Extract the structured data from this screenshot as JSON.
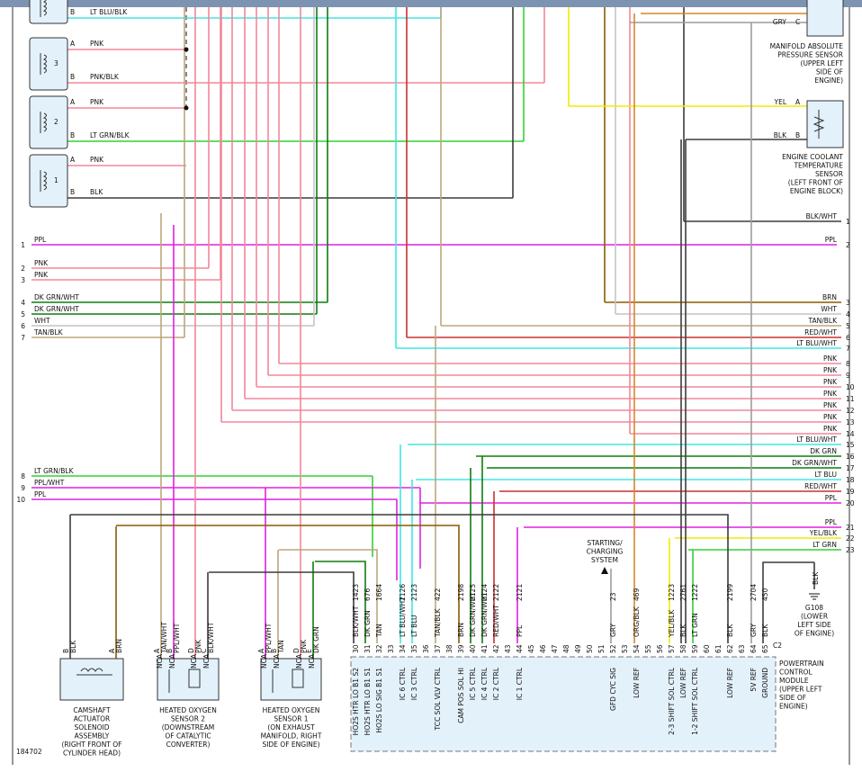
{
  "coils": [
    {
      "pins": [
        {
          "pin": "B",
          "wire": "LT BLU/BLK"
        }
      ]
    },
    {
      "label": "3",
      "pins": [
        {
          "pin": "A",
          "wire": "PNK"
        },
        {
          "pin": "B",
          "wire": "PNK/BLK"
        }
      ]
    },
    {
      "label": "2",
      "pins": [
        {
          "pin": "A",
          "wire": "PNK"
        },
        {
          "pin": "B",
          "wire": "LT GRN/BLK"
        }
      ]
    },
    {
      "label": "1",
      "pins": [
        {
          "pin": "A",
          "wire": "PNK"
        },
        {
          "pin": "B",
          "wire": "BLK"
        }
      ]
    }
  ],
  "left_rows": [
    {
      "num": 1,
      "wire": "PPL"
    },
    {
      "num": 2,
      "wire": "PNK"
    },
    {
      "num": 3,
      "wire": "PNK"
    },
    {
      "num": 4,
      "wire": "DK GRN/WHT"
    },
    {
      "num": 5,
      "wire": "DK GRN/WHT"
    },
    {
      "num": 6,
      "wire": "WHT"
    },
    {
      "num": 7,
      "wire": "TAN/BLK"
    },
    {
      "num": 8,
      "wire": "LT GRN/BLK"
    },
    {
      "num": 9,
      "wire": "PPL/WHT"
    },
    {
      "num": 10,
      "wire": "PPL"
    }
  ],
  "right_rows": [
    {
      "num": 1,
      "wire": "BLK/WHT"
    },
    {
      "num": 2,
      "wire": "PPL"
    },
    {
      "num": 3,
      "wire": "BRN"
    },
    {
      "num": 4,
      "wire": "WHT"
    },
    {
      "num": 5,
      "wire": "TAN/BLK"
    },
    {
      "num": 6,
      "wire": "RED/WHT"
    },
    {
      "num": 7,
      "wire": "LT BLU/WHT"
    },
    {
      "num": 8,
      "wire": "PNK"
    },
    {
      "num": 9,
      "wire": "PNK"
    },
    {
      "num": 10,
      "wire": "PNK"
    },
    {
      "num": 11,
      "wire": "PNK"
    },
    {
      "num": 12,
      "wire": "PNK"
    },
    {
      "num": 13,
      "wire": "PNK"
    },
    {
      "num": 14,
      "wire": "PNK"
    },
    {
      "num": 15,
      "wire": "LT BLU/WHT"
    },
    {
      "num": 16,
      "wire": "DK GRN"
    },
    {
      "num": 17,
      "wire": "DK GRN/WHT"
    },
    {
      "num": 18,
      "wire": "LT BLU"
    },
    {
      "num": 19,
      "wire": "RED/WHT"
    },
    {
      "num": 20,
      "wire": "PPL"
    },
    {
      "num": 21,
      "wire": "PPL"
    },
    {
      "num": 22,
      "wire": "YEL/BLK"
    },
    {
      "num": 23,
      "wire": "LT GRN"
    }
  ],
  "map_sensor": {
    "pins": [
      {
        "wire": "GRY",
        "pin": "C"
      }
    ],
    "label": [
      "MANIFOLD ABSOLUTE",
      "PRESSURE SENSOR",
      "(UPPER LEFT",
      "SIDE OF",
      "ENGINE)"
    ]
  },
  "ect_sensor": {
    "pins": [
      {
        "wire": "YEL",
        "pin": "A"
      },
      {
        "wire": "BLK",
        "pin": "B"
      }
    ],
    "label": [
      "ENGINE COOLANT",
      "TEMPERATURE",
      "SENSOR",
      "(LEFT FRONT OF",
      "ENGINE BLOCK)"
    ]
  },
  "camshaft": {
    "pins": [
      {
        "pin": "B",
        "wire": "BLK"
      },
      {
        "pin": "A",
        "wire": "BRN"
      }
    ],
    "label": [
      "CAMSHAFT",
      "ACTUATOR",
      "SOLENOID",
      "ASSEMBLY",
      "(RIGHT FRONT OF",
      "CYLINDER HEAD)"
    ]
  },
  "ho2s2": {
    "pins": [
      {
        "pin": "A",
        "wire": "TAN/WHT",
        "nca": "NCA"
      },
      {
        "pin": "B",
        "wire": "PPL/WHT",
        "nca": "NCA"
      },
      {
        "pin": "D",
        "wire": "PNK",
        "nca": "NCA"
      },
      {
        "pin": "C",
        "wire": "BLK/WHT",
        "nca": "NCA"
      }
    ],
    "label": [
      "HEATED OXYGEN",
      "SENSOR 2",
      "(DOWNSTREAM",
      "OF CATALYTIC",
      "CONVERTER)"
    ]
  },
  "ho2s1": {
    "pins": [
      {
        "pin": "A",
        "wire": "PPL/WHT",
        "nca": "NCA"
      },
      {
        "pin": "B",
        "wire": "TAN",
        "nca": "NCA"
      },
      {
        "pin": "D",
        "wire": "PNK",
        "nca": "NCA"
      },
      {
        "pin": "E",
        "wire": "DK GRN",
        "nca": "NCA"
      }
    ],
    "label": [
      "HEATED OXYGEN",
      "SENSOR 1",
      "(ON EXHAUST",
      "MANIFOLD, RIGHT",
      "SIDE OF ENGINE)"
    ]
  },
  "pcm": {
    "connector": "C2",
    "label": [
      "POWERTRAIN",
      "CONTROL",
      "MODULE",
      "(UPPER LEFT",
      "SIDE OF",
      "ENGINE)"
    ],
    "pins": [
      {
        "pin": 30,
        "wire": "BLK/WHT",
        "circuit": 1423,
        "function": "HO2S HTR LO B1 S2"
      },
      {
        "pin": 31,
        "wire": "DK GRN",
        "circuit": 676,
        "function": "HO2S HTR LO B1 S1"
      },
      {
        "pin": 32,
        "wire": "TAN",
        "circuit": 1664,
        "function": "HO2S LO SIG B1 S1"
      },
      {
        "pin": 33
      },
      {
        "pin": 34,
        "wire": "LT BLU/WHT",
        "circuit": 2126,
        "function": "IC 6 CTRL"
      },
      {
        "pin": 35,
        "wire": "LT BLU",
        "circuit": 2123,
        "function": "IC 3 CTRL"
      },
      {
        "pin": 36
      },
      {
        "pin": 37,
        "wire": "TAN/BLK",
        "circuit": 422,
        "function": "TCC SOL VLV CTRL"
      },
      {
        "pin": 38
      },
      {
        "pin": 39,
        "wire": "BRN",
        "circuit": 2198,
        "function": "CAM POS SOL HI"
      },
      {
        "pin": 40,
        "wire": "DK GRN/WHT",
        "circuit": 2125,
        "function": "IC 5 CTRL"
      },
      {
        "pin": 41,
        "wire": "DK GRN/WHT",
        "circuit": 2124,
        "function": "IC 4 CTRL"
      },
      {
        "pin": 42,
        "wire": "RED/WHT",
        "circuit": 2122,
        "function": "IC 2 CTRL"
      },
      {
        "pin": 43
      },
      {
        "pin": 44,
        "wire": "PPL",
        "circuit": 2121,
        "function": "IC 1 CTRL"
      },
      {
        "pin": 45
      },
      {
        "pin": 46
      },
      {
        "pin": 47
      },
      {
        "pin": 48
      },
      {
        "pin": 49
      },
      {
        "pin": 50
      },
      {
        "pin": 51
      },
      {
        "pin": 52,
        "wire": "GRY",
        "circuit": 23,
        "function": "GFD CYC SIG"
      },
      {
        "pin": 53
      },
      {
        "pin": 54,
        "wire": "ORG/BLK",
        "circuit": 469,
        "function": "LOW REF"
      },
      {
        "pin": 55
      },
      {
        "pin": 56
      },
      {
        "pin": 57,
        "wire": "YEL/BLK",
        "circuit": 1223,
        "function": "2-3 SHIFT SOL CTRL"
      },
      {
        "pin": 58,
        "wire": "BLK",
        "circuit": 2761,
        "function": "LOW REF"
      },
      {
        "pin": 59,
        "wire": "LT GRN",
        "circuit": 1222,
        "function": "1-2 SHIFT SOL CTRL"
      },
      {
        "pin": 60
      },
      {
        "pin": 61
      },
      {
        "pin": 62,
        "wire": "BLK",
        "circuit": 2199,
        "function": "LOW REF"
      },
      {
        "pin": 63
      },
      {
        "pin": 64,
        "wire": "GRY",
        "circuit": 2704,
        "function": "5V REF"
      },
      {
        "pin": 65,
        "wire": "BLK",
        "circuit": 450,
        "function": "GROUND"
      }
    ]
  },
  "starting_system": [
    "STARTING/",
    "CHARGING",
    "SYSTEM"
  ],
  "ground": {
    "wire": "BLK",
    "label": [
      "G108",
      "(LOWER",
      "LEFT SIDE",
      "OF ENGINE)"
    ]
  },
  "figure_id": "184702"
}
